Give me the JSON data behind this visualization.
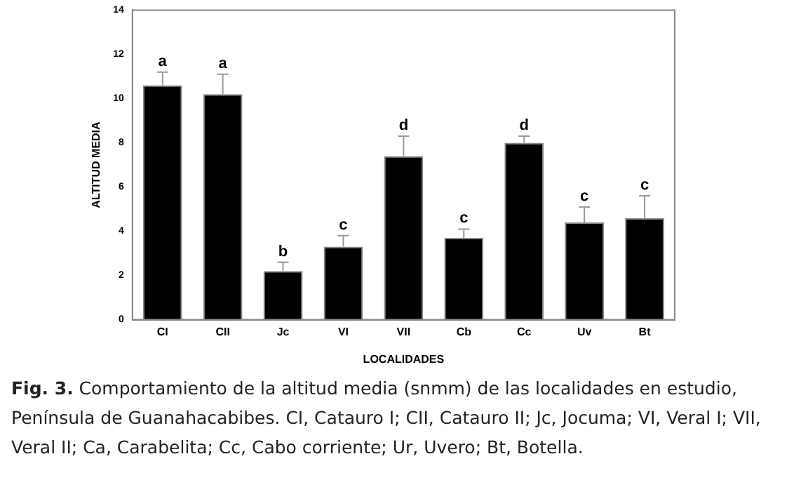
{
  "chart_data": {
    "type": "bar",
    "xlabel": "LOCALIDADES",
    "ylabel": "ALTITUD MEDIA",
    "categories": [
      "CI",
      "CII",
      "Jc",
      "VI",
      "VII",
      "Cb",
      "Cc",
      "Uv",
      "Bt"
    ],
    "values": [
      10.6,
      10.2,
      2.2,
      3.3,
      7.4,
      3.7,
      8.0,
      4.4,
      4.6
    ],
    "errors": [
      [
        10.6,
        11.2
      ],
      [
        10.2,
        11.1
      ],
      [
        2.2,
        2.6
      ],
      [
        3.3,
        3.8
      ],
      [
        7.4,
        8.3
      ],
      [
        3.7,
        4.1
      ],
      [
        8.0,
        8.3
      ],
      [
        4.4,
        5.1
      ],
      [
        4.6,
        5.6
      ]
    ],
    "color": "#000000",
    "ylim": [
      0,
      14
    ],
    "yticks": [
      0,
      2,
      4,
      6,
      8,
      10,
      12,
      14
    ],
    "grid": false,
    "legend": false,
    "annotations": [
      {
        "text": "a",
        "x": "CI",
        "y": 11.2
      },
      {
        "text": "a",
        "x": "CII",
        "y": 11.1
      },
      {
        "text": "b",
        "x": "Jc",
        "y": 2.6
      },
      {
        "text": "c",
        "x": "VI",
        "y": 3.8
      },
      {
        "text": "d",
        "x": "VII",
        "y": 8.3
      },
      {
        "text": "c",
        "x": "Cb",
        "y": 4.1
      },
      {
        "text": "d",
        "x": "Cc",
        "y": 8.3
      },
      {
        "text": "c",
        "x": "Uv",
        "y": 5.1
      },
      {
        "text": "c",
        "x": "Bt",
        "y": 5.6
      },
      "Fig. 3. Comportamiento de la altitud media (snmm) de las localidades en estudio, Península de Guanahacabibes. CI, Catauro I; CII, Catauro II; Jc, Jocuma; VI, Veral I; VII, Veral II; Ca, Carabelita; Cc, Cabo corriente; Ur, Uvero; Bt, Botella."
    ]
  }
}
